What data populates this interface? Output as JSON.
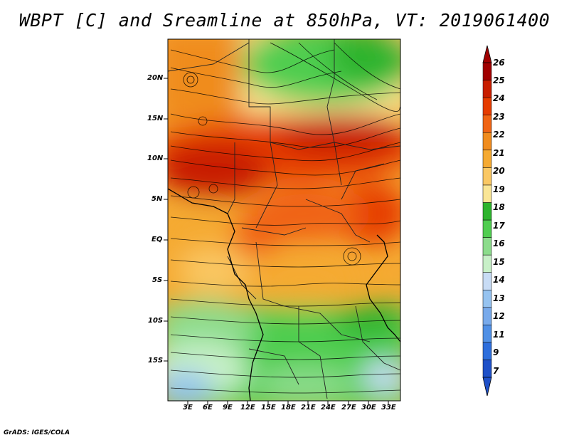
{
  "title": "WBPT [C] and Sreamline at 850hPa, VT: 2019061400",
  "credit": "GrADS: IGES/COLA",
  "lat_labels": [
    "20N",
    "15N",
    "10N",
    "5N",
    "EQ",
    "5S",
    "10S",
    "15S"
  ],
  "lon_labels": [
    "3E",
    "6E",
    "9E",
    "12E",
    "15E",
    "18E",
    "21E",
    "24E",
    "27E",
    "30E",
    "33E"
  ],
  "colorbar": {
    "labels": [
      "26",
      "25",
      "24",
      "23",
      "22",
      "21",
      "20",
      "19",
      "18",
      "17",
      "16",
      "15",
      "14",
      "13",
      "12",
      "11",
      "9",
      "7"
    ],
    "colors": [
      "#a00000",
      "#c81e00",
      "#e63c00",
      "#f06414",
      "#f08c1e",
      "#f5aa32",
      "#fac864",
      "#fae696",
      "#2db42d",
      "#50cd50",
      "#8cdc8c",
      "#c8f0c8",
      "#c8dcf5",
      "#96c3f0",
      "#78aaeb",
      "#5090e6",
      "#2d6edc",
      "#1e50c8"
    ]
  }
}
